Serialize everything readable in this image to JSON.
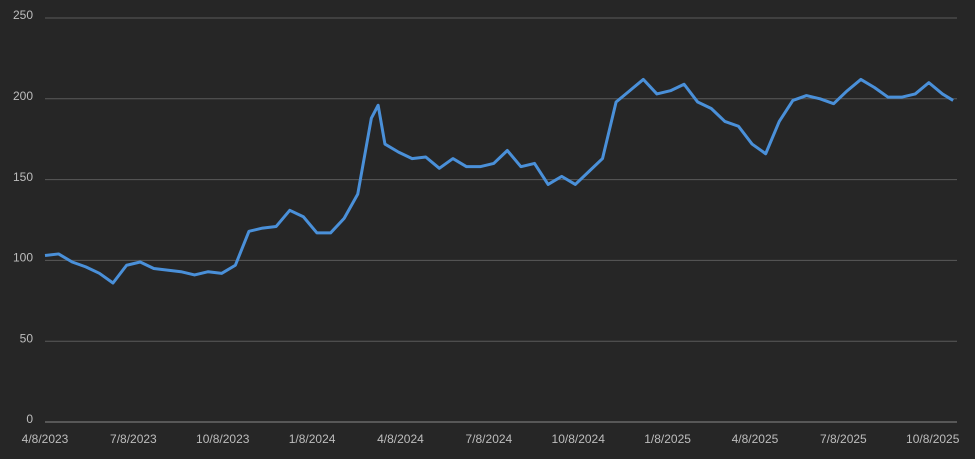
{
  "chart_data": {
    "type": "line",
    "x": [
      "4/8/2023",
      "4/22/2023",
      "5/6/2023",
      "5/20/2023",
      "6/3/2023",
      "6/17/2023",
      "7/1/2023",
      "7/15/2023",
      "7/29/2023",
      "8/12/2023",
      "8/26/2023",
      "9/9/2023",
      "9/23/2023",
      "10/7/2023",
      "10/21/2023",
      "11/4/2023",
      "11/18/2023",
      "12/2/2023",
      "12/16/2023",
      "12/30/2023",
      "1/13/2024",
      "1/27/2024",
      "2/10/2024",
      "2/24/2024",
      "3/9/2024",
      "3/16/2024",
      "3/23/2024",
      "4/6/2024",
      "4/20/2024",
      "5/4/2024",
      "5/18/2024",
      "6/1/2024",
      "6/15/2024",
      "6/29/2024",
      "7/13/2024",
      "7/27/2024",
      "8/10/2024",
      "8/24/2024",
      "9/7/2024",
      "9/21/2024",
      "10/5/2024",
      "10/19/2024",
      "11/2/2024",
      "11/16/2024",
      "11/30/2024",
      "12/14/2024",
      "12/28/2024",
      "1/11/2025",
      "1/25/2025",
      "2/8/2025",
      "2/22/2025",
      "3/8/2025",
      "3/22/2025",
      "4/5/2025",
      "4/19/2025",
      "5/3/2025",
      "5/17/2025",
      "5/31/2025",
      "6/14/2025",
      "6/28/2025",
      "7/12/2025",
      "7/26/2025",
      "8/9/2025",
      "8/23/2025",
      "9/6/2025",
      "9/20/2025",
      "10/4/2025",
      "10/18/2025",
      "10/29/2025"
    ],
    "series": [
      {
        "color": "#4a90d9",
        "values": [
          103,
          104,
          99,
          96,
          92,
          86,
          97,
          99,
          95,
          94,
          93,
          91,
          93,
          92,
          97,
          118,
          120,
          121,
          131,
          127,
          117,
          117,
          126,
          141,
          188,
          196,
          172,
          167,
          163,
          164,
          157,
          163,
          158,
          158,
          160,
          168,
          158,
          160,
          147,
          152,
          147,
          155,
          163,
          198,
          205,
          212,
          203,
          205,
          209,
          198,
          194,
          186,
          183,
          172,
          166,
          186,
          199,
          202,
          200,
          197,
          205,
          212,
          207,
          201,
          201,
          203,
          210,
          203,
          199
        ]
      }
    ],
    "xlim": [
      "4/8/2023",
      "11/2/2025"
    ],
    "xticks": [
      "4/8/2023",
      "7/8/2023",
      "10/8/2023",
      "1/8/2024",
      "4/8/2024",
      "7/8/2024",
      "10/8/2024",
      "1/8/2025",
      "4/8/2025",
      "7/8/2025",
      "10/8/2025"
    ],
    "ylim": [
      0,
      250
    ],
    "yticks": [
      0,
      50,
      100,
      150,
      200,
      250
    ],
    "grid": true
  }
}
